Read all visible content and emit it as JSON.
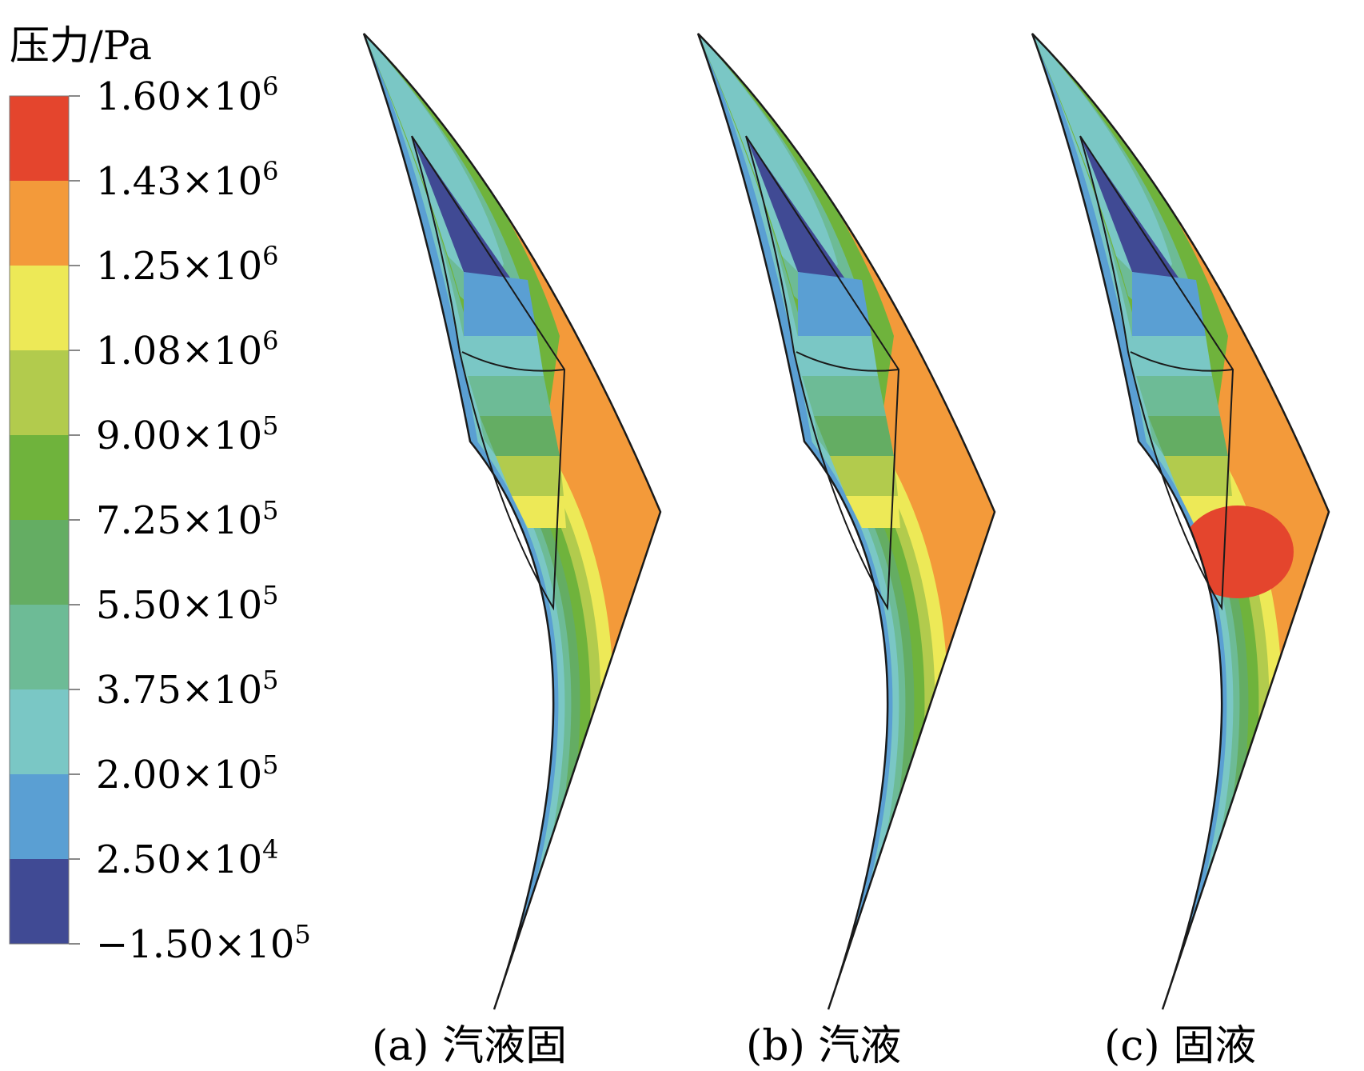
{
  "legend": {
    "title": "压力/Pa",
    "levels": [
      {
        "label_mant": "1.60×10",
        "label_exp": "6",
        "color": "#e4452d"
      },
      {
        "label_mant": "1.43×10",
        "label_exp": "6",
        "color": "#f39a3a"
      },
      {
        "label_mant": "1.25×10",
        "label_exp": "6",
        "color": "#ede957"
      },
      {
        "label_mant": "1.08×10",
        "label_exp": "6",
        "color": "#b2cb4d"
      },
      {
        "label_mant": "9.00×10",
        "label_exp": "5",
        "color": "#6fb33c"
      },
      {
        "label_mant": "7.25×10",
        "label_exp": "5",
        "color": "#64ad63"
      },
      {
        "label_mant": "5.50×10",
        "label_exp": "5",
        "color": "#6dbb96"
      },
      {
        "label_mant": "3.75×10",
        "label_exp": "5",
        "color": "#7ac7c5"
      },
      {
        "label_mant": "2.00×10",
        "label_exp": "5",
        "color": "#5a9fd3"
      },
      {
        "label_mant": "2.50×10",
        "label_exp": "4",
        "color": "#404a94"
      },
      {
        "label_mant": "−1.50×10",
        "label_exp": "5",
        "color": null
      }
    ]
  },
  "panels": [
    {
      "caption": "(a) 汽液固",
      "has_high_pressure_zone": false
    },
    {
      "caption": "(b) 汽液",
      "has_high_pressure_zone": false
    },
    {
      "caption": "(c) 固液",
      "has_high_pressure_zone": true
    }
  ],
  "colors": {
    "dark_blue": "#404a94",
    "blue": "#5a9fd3",
    "cyan": "#7ac7c5",
    "teal": "#6dbb96",
    "green": "#64ad63",
    "bright_green": "#6fb33c",
    "yellow_green": "#b2cb4d",
    "yellow": "#ede957",
    "orange": "#f39a3a",
    "red": "#e4452d"
  }
}
